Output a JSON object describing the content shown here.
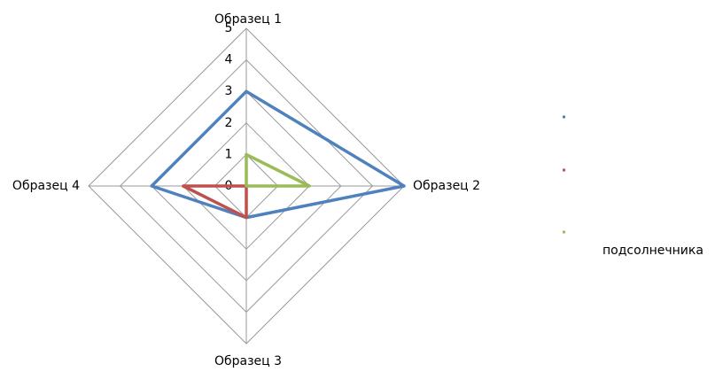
{
  "chart_data": {
    "type": "radar",
    "categories": [
      "Образец 1",
      "Образец 2",
      "Образец 3",
      "Образец 4"
    ],
    "series": [
      {
        "color": "#4f81bd",
        "values": [
          3,
          5,
          1,
          3
        ]
      },
      {
        "color": "#c0504d",
        "values": [
          0,
          0,
          1,
          2
        ]
      },
      {
        "name": "подсолнечника",
        "color": "#9bbb59",
        "values": [
          1,
          2,
          0,
          0
        ]
      }
    ],
    "ylim": [
      0,
      5
    ],
    "yticks": [
      0,
      1,
      2,
      3,
      4,
      5
    ],
    "grid": true
  }
}
